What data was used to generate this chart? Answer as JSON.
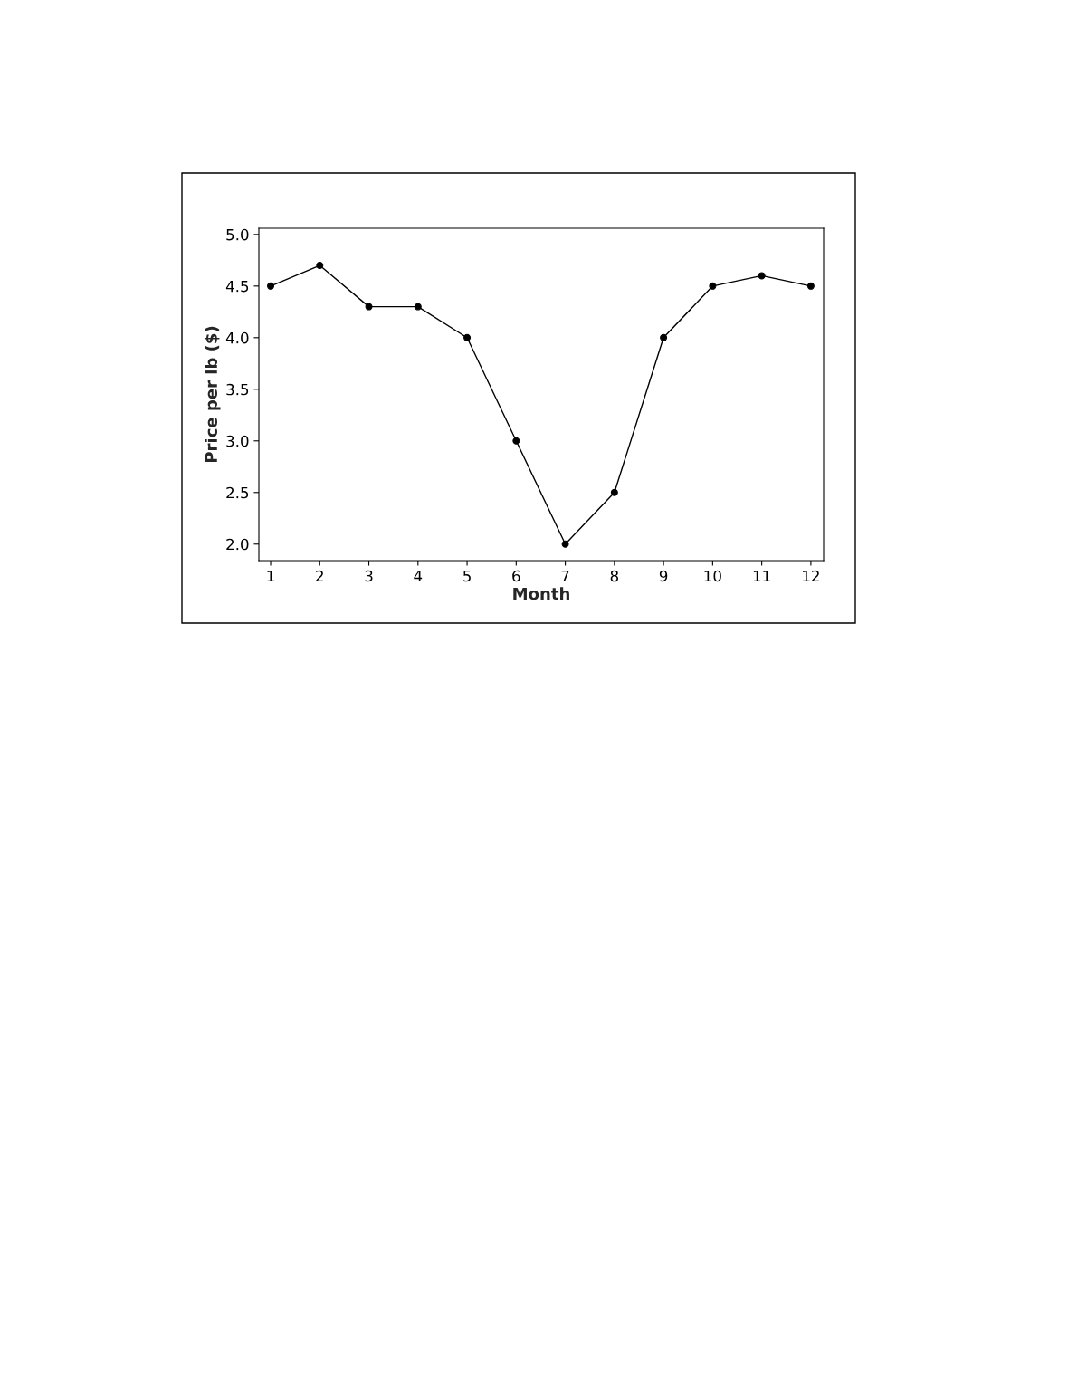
{
  "chart_data": {
    "type": "line",
    "xlabel": "Month",
    "ylabel": "Price per lb ($)",
    "x": [
      1,
      2,
      3,
      4,
      5,
      6,
      7,
      8,
      9,
      10,
      11,
      12
    ],
    "series": [
      {
        "color": "#000000",
        "values": [
          4.5,
          4.7,
          4.3,
          4.3,
          4.0,
          3.0,
          2.0,
          2.5,
          4.0,
          4.5,
          4.6,
          4.5
        ]
      }
    ],
    "xlim": [
      0.76,
      12.26
    ],
    "xticks": [
      1,
      2,
      3,
      4,
      5,
      6,
      7,
      8,
      9,
      10,
      11,
      12
    ],
    "ylim": [
      1.84,
      5.06
    ],
    "yticks": [
      {
        "value": 2.0,
        "label": "2.0"
      },
      {
        "value": 2.5,
        "label": "2.5"
      },
      {
        "value": 3.0,
        "label": "3.0"
      },
      {
        "value": 3.5,
        "label": "3.5"
      },
      {
        "value": 4.0,
        "label": "4.0"
      },
      {
        "value": 4.5,
        "label": "4.5"
      },
      {
        "value": 5.0,
        "label": "5.0"
      }
    ],
    "marker": "circle",
    "line_style": "solid",
    "grid": false,
    "legend": false
  }
}
